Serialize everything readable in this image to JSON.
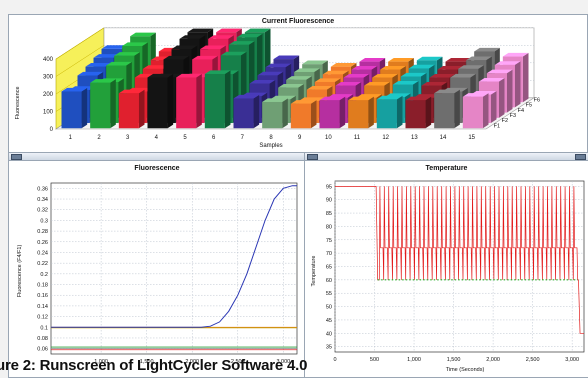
{
  "top_panel": {
    "title": "Current Fluorescence",
    "ylabel": "Fluorescence",
    "xlabel": "Samples",
    "yticks": [
      "400",
      "300",
      "200",
      "100",
      "0"
    ],
    "samples": [
      "1",
      "2",
      "3",
      "4",
      "5",
      "6",
      "7",
      "8",
      "9",
      "10",
      "11",
      "12",
      "13",
      "14",
      "15"
    ],
    "rows": [
      "F1",
      "F2",
      "F3",
      "F4",
      "F5",
      "F6"
    ]
  },
  "fluor_panel": {
    "title": "Fluorescence",
    "ylabel": "Fluorescence (F4/F1)",
    "yticks": [
      "0.36",
      "0.34",
      "0.32",
      "0.3",
      "0.28",
      "0.26",
      "0.24",
      "0.22",
      "0.2",
      "0.18",
      "0.16",
      "0.14",
      "0.12",
      "0.1",
      "0.08",
      "0.06"
    ],
    "xticks": [
      "1,000",
      "1,500",
      "2,000",
      "2,500",
      "3,000"
    ]
  },
  "temp_panel": {
    "title": "Temperature",
    "ylabel": "Temperature",
    "xlabel": "Time (Seconds)",
    "yticks": [
      "95",
      "90",
      "85",
      "80",
      "75",
      "70",
      "65",
      "60",
      "55",
      "50",
      "45",
      "40",
      "35"
    ],
    "xticks": [
      "0",
      "500",
      "1,000",
      "1,500",
      "2,000",
      "2,500",
      "3,000"
    ]
  },
  "caption": "ure 2: Runscreen of LightCycler Software 4.0",
  "colors": {
    "panel_border": "#9aa6b4",
    "grid": "#b8c0cc",
    "amplification_curve": "#2a36b4",
    "temperature_trace": "#e21a1a",
    "hold_marker": "#22b022",
    "baseline_yellow": "#f6f05a"
  },
  "chart_data": [
    {
      "type": "bar",
      "title": "Current Fluorescence",
      "ylabel": "Fluorescence",
      "xlabel": "Samples",
      "ylim": [
        0,
        400
      ],
      "categories": [
        "1",
        "2",
        "3",
        "4",
        "5",
        "6",
        "7",
        "8",
        "9",
        "10",
        "11",
        "12",
        "13",
        "14",
        "15"
      ],
      "series": [
        {
          "name": "F1",
          "values": [
            210,
            260,
            200,
            290,
            290,
            310,
            170,
            150,
            140,
            160,
            160,
            165,
            160,
            200,
            180
          ]
        }
      ]
    },
    {
      "type": "line",
      "title": "Fluorescence",
      "ylabel": "Fluorescence (F4/F1)",
      "xlim": [
        450,
        3150
      ],
      "ylim": [
        0.05,
        0.37
      ],
      "x": [
        450,
        1000,
        1500,
        2000,
        2100,
        2200,
        2300,
        2400,
        2500,
        2600,
        2700,
        2800,
        2900,
        3000,
        3100,
        3150
      ],
      "series": [
        {
          "values": [
            0.1,
            0.1,
            0.1,
            0.1,
            0.1,
            0.102,
            0.11,
            0.13,
            0.16,
            0.2,
            0.25,
            0.3,
            0.34,
            0.36,
            0.365,
            0.365
          ]
        }
      ]
    },
    {
      "type": "line",
      "title": "Temperature",
      "ylabel": "Temperature",
      "xlabel": "Time (Seconds)",
      "xlim": [
        0,
        3150
      ],
      "ylim": [
        33,
        97
      ],
      "x": [
        0,
        520,
        540,
        3070,
        3100,
        3150
      ],
      "series": [
        {
          "values": [
            95,
            95,
            60,
            60,
            40,
            40
          ]
        }
      ]
    }
  ]
}
